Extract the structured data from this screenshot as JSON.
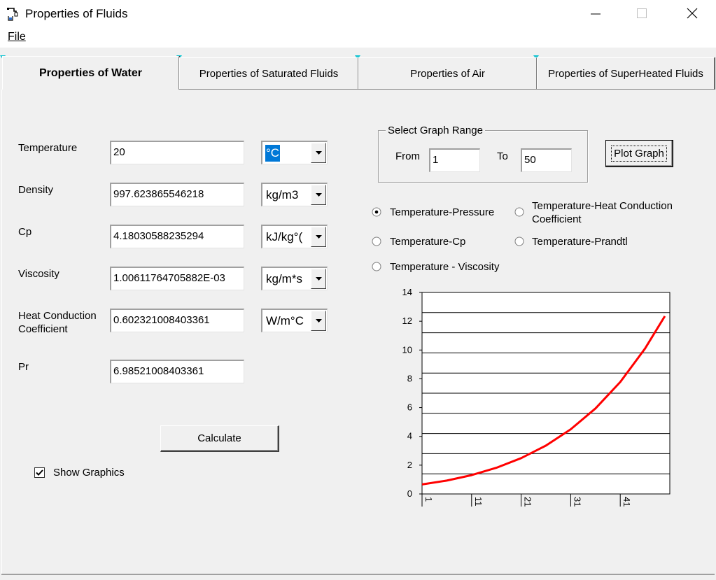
{
  "window": {
    "title": "Properties of Fluids",
    "controls": [
      "minimize",
      "maximize",
      "close"
    ]
  },
  "menu": {
    "file": "File"
  },
  "tabs": [
    {
      "label": "Properties of Water",
      "active": true
    },
    {
      "label": "Properties of Saturated Fluids",
      "active": false
    },
    {
      "label": "Properties of Air",
      "active": false
    },
    {
      "label": "Properties of SuperHeated Fluids",
      "active": false
    }
  ],
  "fields": {
    "temperature": {
      "label": "Temperature",
      "value": "20",
      "unit": "°C"
    },
    "density": {
      "label": "Density",
      "value": "997.623865546218",
      "unit": "kg/m3"
    },
    "cp": {
      "label": "Cp",
      "value": "4.18030588235294",
      "unit": "kJ/kg°("
    },
    "viscosity": {
      "label": "Viscosity",
      "value": "1.00611764705882E-03",
      "unit": "kg/m*s"
    },
    "heat_conduction": {
      "label_line1": "Heat Conduction",
      "label_line2": "Coefficient",
      "value": "0.602321008403361",
      "unit": "W/m°C"
    },
    "pr": {
      "label": "Pr",
      "value": "6.98521008403361"
    }
  },
  "graph_range": {
    "legend": "Select Graph Range",
    "from_label": "From",
    "from_value": "1",
    "to_label": "To",
    "to_value": "50"
  },
  "buttons": {
    "plot_graph": "Plot Graph",
    "calculate": "Calculate"
  },
  "radios": {
    "temp_pressure": {
      "label": "Temperature-Pressure",
      "checked": true
    },
    "temp_heat_line1": "Temperature-Heat Conduction",
    "temp_heat_line2": "Coefficient",
    "temp_cp": {
      "label": "Temperature-Cp",
      "checked": false
    },
    "temp_prandtl": {
      "label": "Temperature-Prandtl",
      "checked": false
    },
    "temp_viscosity": {
      "label": "Temperature - Viscosity",
      "checked": false
    }
  },
  "show_graphics": {
    "label": "Show Graphics",
    "checked": true
  },
  "chart_data": {
    "type": "line",
    "title": "",
    "xlabel": "",
    "ylabel": "",
    "x_ticks": [
      "1",
      "11",
      "21",
      "31",
      "41"
    ],
    "y_ticks": [
      "0",
      "2",
      "4",
      "6",
      "8",
      "10",
      "12",
      "14"
    ],
    "ylim": [
      0,
      14
    ],
    "xlim": [
      1,
      51
    ],
    "grid": "horizontal",
    "series": [
      {
        "color": "#ff0000",
        "x": [
          1,
          6,
          11,
          16,
          21,
          26,
          31,
          36,
          41,
          46,
          50
        ],
        "y": [
          0.66,
          0.93,
          1.31,
          1.82,
          2.49,
          3.36,
          4.49,
          5.94,
          7.78,
          10.1,
          12.35
        ]
      }
    ]
  }
}
